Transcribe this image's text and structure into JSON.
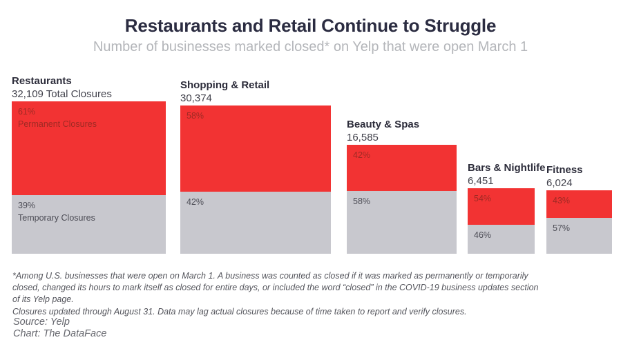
{
  "header": {
    "title": "Restaurants and Retail Continue to Struggle",
    "subtitle": "Number of businesses marked closed* on Yelp that were open March 1"
  },
  "chart_data": {
    "type": "bar",
    "subtype": "variable-size stacked percentage blocks",
    "title": "Restaurants and Retail Continue to Struggle",
    "subtitle": "Number of businesses marked closed* on Yelp that were open March 1",
    "categories": [
      "Restaurants",
      "Shopping & Retail",
      "Beauty & Spas",
      "Bars & Nightlife",
      "Fitness"
    ],
    "totals": [
      32109,
      30374,
      16585,
      6451,
      6024
    ],
    "series": [
      {
        "name": "Permanent Closures",
        "color": "#f23333",
        "values_pct": [
          61,
          58,
          42,
          54,
          43
        ]
      },
      {
        "name": "Temporary Closures",
        "color": "#c8c8ce",
        "values_pct": [
          39,
          42,
          58,
          46,
          57
        ]
      }
    ],
    "legend_position": "inside-first-bar",
    "grid": false,
    "axes": "none (block sizes scaled to total closures)"
  },
  "bars": [
    {
      "label": "Restaurants",
      "total_label": "32,109 Total Closures",
      "permanent_pct": "61%",
      "permanent_caption": "Permanent Closures",
      "temporary_pct": "39%",
      "temporary_caption": "Temporary Closures"
    },
    {
      "label": "Shopping & Retail",
      "total_label": "30,374",
      "permanent_pct": "58%",
      "temporary_pct": "42%"
    },
    {
      "label": "Beauty & Spas",
      "total_label": "16,585",
      "permanent_pct": "42%",
      "temporary_pct": "58%"
    },
    {
      "label": "Bars & Nightlife",
      "total_label": "6,451",
      "permanent_pct": "54%",
      "temporary_pct": "46%"
    },
    {
      "label": "Fitness",
      "total_label": "6,024",
      "permanent_pct": "43%",
      "temporary_pct": "57%"
    }
  ],
  "footnotes": {
    "para1": "*Among U.S. businesses that were open on March 1. A business was counted as closed if it was marked as permanently or temporarily closed, changed its hours to mark itself as closed for entire days, or included the word “closed” in the COVID-19 business updates section of its Yelp page.",
    "para2": "Closures updated through August 31. Data may lag actual closures because of time taken to report and verify closures."
  },
  "source": {
    "source_line": "Source: Yelp",
    "chart_line": "Chart: The DataFace"
  },
  "colors": {
    "permanent_red": "#f23333",
    "permanent_text": "#9f2a24",
    "temporary_gray": "#c8c8ce",
    "temporary_text": "#4c4c55",
    "title": "#2b2c41",
    "subtitle": "#b4b6ba",
    "category_label": "#2c2c3a",
    "value_label": "#42424c",
    "footnote": "#54555c",
    "source": "#64656c",
    "background": "#ffffff"
  }
}
